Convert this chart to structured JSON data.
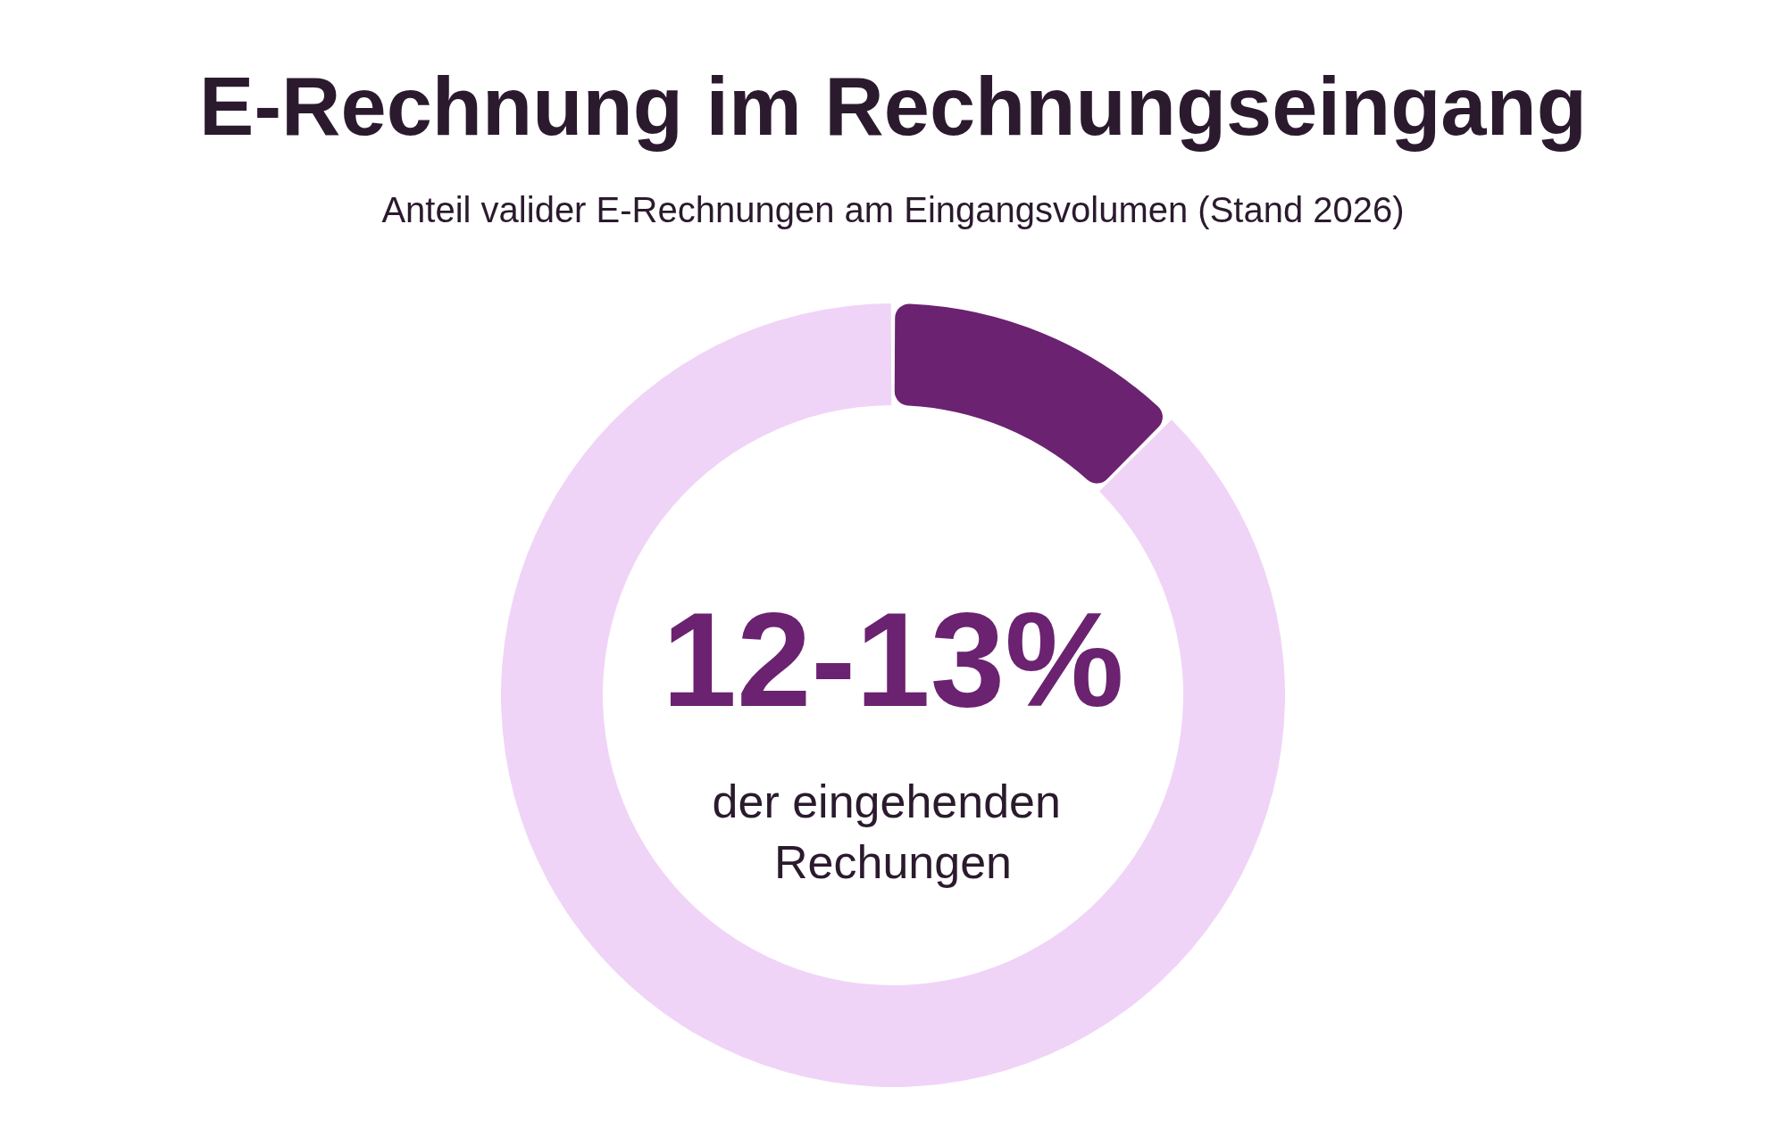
{
  "chart_data": {
    "type": "donut",
    "title": "E-Rechnung im Rechnungseingang",
    "subtitle": "Anteil valider E-Rechnungen am Eingangsvolumen (Stand 2026)",
    "categories": [
      null,
      null
    ],
    "values": [
      12.5,
      87.5
    ],
    "colors": [
      "#6b2270",
      "#f0d4f7"
    ],
    "annotations": [
      "12-13%",
      "der eingehenden Rechungen"
    ]
  }
}
